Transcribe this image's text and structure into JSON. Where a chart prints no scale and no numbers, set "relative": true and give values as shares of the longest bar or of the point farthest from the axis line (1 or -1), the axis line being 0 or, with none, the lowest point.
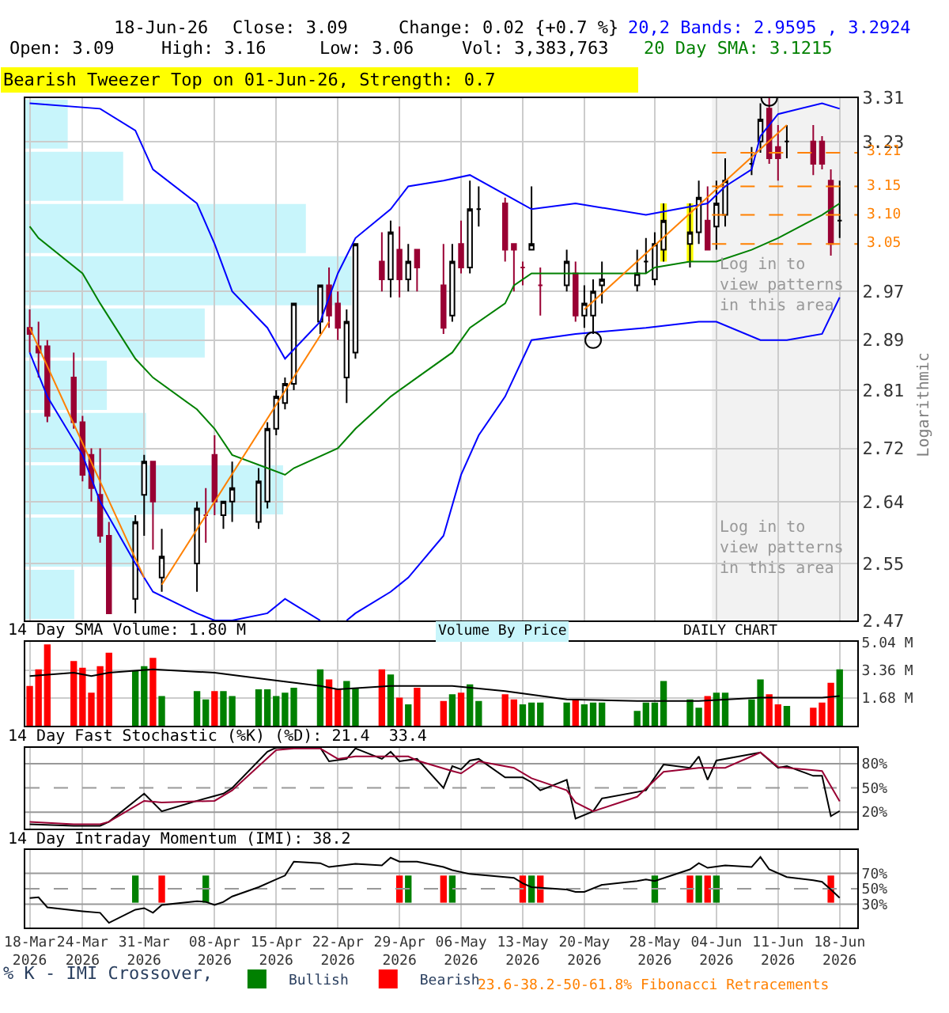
{
  "chart_data": [
    {
      "type": "candlestick",
      "log": true,
      "ylim": [
        2.47,
        3.31
      ],
      "yticks": [
        3.31,
        3.23,
        2.97,
        2.89,
        2.81,
        2.72,
        2.64,
        2.55,
        2.47
      ],
      "xlim": [
        "2026-03-17T12:00",
        "2026-06-20"
      ],
      "xticks": [
        {
          "value": "2026-03-18",
          "label": null
        },
        {
          "value": "2026-03-24",
          "label": null
        },
        {
          "value": "2026-03-31",
          "label": null
        },
        {
          "value": "2026-04-08",
          "label": null
        },
        {
          "value": "2026-04-15",
          "label": null
        },
        {
          "value": "2026-04-22",
          "label": null
        },
        {
          "value": "2026-04-29",
          "label": null
        },
        {
          "value": "2026-05-06",
          "label": null
        },
        {
          "value": "2026-05-13",
          "label": null
        },
        {
          "value": "2026-05-20",
          "label": null
        },
        {
          "value": "2026-05-28",
          "label": null
        },
        {
          "value": "2026-06-04",
          "label": null
        },
        {
          "value": "2026-06-11",
          "label": null
        },
        {
          "value": "2026-06-18",
          "label": null
        }
      ],
      "tick_labels": "y",
      "grid": true,
      "ylabel": "Logarithmic",
      "annotations": [
        "18-Jun-26",
        "Close: 3.09",
        "Change: 0.02 {+0.7 %}",
        "Open: 3.09",
        "High: 3.16",
        "Low: 3.06",
        "Vol: 3,383,763",
        "Bearish Tweezer Top on 01-Jun-26, Strength: 0.7",
        {
          "text": "Log in to\nview patterns\nin this area",
          "x": "2026-06-04",
          "y": 3.035
        },
        {
          "text": "Log in to\nview patterns\nin this area",
          "x": "2026-06-04",
          "y": 2.62
        },
        "DAILY CHART",
        "23.6-38.2-50-61.8% Fibonacci Retracements",
        "Volume By Price"
      ],
      "x": [
        "2026-03-18",
        "2026-03-19",
        "2026-03-20",
        "2026-03-23",
        "2026-03-24",
        "2026-03-25",
        "2026-03-26",
        "2026-03-27",
        "2026-03-30",
        "2026-03-31",
        "2026-04-01",
        "2026-04-02",
        "2026-04-06",
        "2026-04-07",
        "2026-04-08",
        "2026-04-09",
        "2026-04-10",
        "2026-04-13",
        "2026-04-14",
        "2026-04-15",
        "2026-04-16",
        "2026-04-17",
        "2026-04-20",
        "2026-04-21",
        "2026-04-22",
        "2026-04-23",
        "2026-04-24",
        "2026-04-27",
        "2026-04-28",
        "2026-04-29",
        "2026-04-30",
        "2026-05-01",
        "2026-05-04",
        "2026-05-05",
        "2026-05-06",
        "2026-05-07",
        "2026-05-08",
        "2026-05-11",
        "2026-05-12",
        "2026-05-13",
        "2026-05-14",
        "2026-05-15",
        "2026-05-18",
        "2026-05-19",
        "2026-05-20",
        "2026-05-21",
        "2026-05-22",
        "2026-05-26",
        "2026-05-27",
        "2026-05-28",
        "2026-05-29",
        "2026-06-01",
        "2026-06-02",
        "2026-06-03",
        "2026-06-04",
        "2026-06-05",
        "2026-06-08",
        "2026-06-09",
        "2026-06-10",
        "2026-06-11",
        "2026-06-12",
        "2026-06-15",
        "2026-06-16",
        "2026-06-17",
        "2026-06-18"
      ],
      "ohlc": [
        [
          2.91,
          2.94,
          2.87,
          2.9
        ],
        [
          2.88,
          2.92,
          2.83,
          2.87
        ],
        [
          2.88,
          2.89,
          2.76,
          2.77
        ],
        [
          2.83,
          2.87,
          2.75,
          2.76
        ],
        [
          2.76,
          2.77,
          2.67,
          2.68
        ],
        [
          2.71,
          2.72,
          2.64,
          2.66
        ],
        [
          2.65,
          2.72,
          2.58,
          2.59
        ],
        [
          2.59,
          2.61,
          2.48,
          2.48
        ],
        [
          2.5,
          2.62,
          2.48,
          2.61
        ],
        [
          2.65,
          2.71,
          2.59,
          2.7
        ],
        [
          2.7,
          2.7,
          2.57,
          2.64
        ],
        [
          2.53,
          2.6,
          2.51,
          2.56
        ],
        [
          2.55,
          2.64,
          2.51,
          2.63
        ],
        [
          2.62,
          2.66,
          2.58,
          2.62
        ],
        [
          2.71,
          2.74,
          2.62,
          2.64
        ],
        [
          2.62,
          2.64,
          2.6,
          2.64
        ],
        [
          2.64,
          2.7,
          2.61,
          2.66
        ],
        [
          2.61,
          2.69,
          2.6,
          2.67
        ],
        [
          2.64,
          2.76,
          2.63,
          2.75
        ],
        [
          2.75,
          2.81,
          2.74,
          2.8
        ],
        [
          2.79,
          2.83,
          2.78,
          2.82
        ],
        [
          2.82,
          2.95,
          2.81,
          2.95
        ],
        [
          2.92,
          2.98,
          2.9,
          2.98
        ],
        [
          2.98,
          3.01,
          2.91,
          2.93
        ],
        [
          2.95,
          2.97,
          2.89,
          2.91
        ],
        [
          2.83,
          2.94,
          2.79,
          2.92
        ],
        [
          2.87,
          3.05,
          2.86,
          3.05
        ],
        [
          3.02,
          3.07,
          2.97,
          2.99
        ],
        [
          2.99,
          3.09,
          2.96,
          3.07
        ],
        [
          3.04,
          3.08,
          2.96,
          2.99
        ],
        [
          2.99,
          3.05,
          2.97,
          3.02
        ],
        [
          3.04,
          3.04,
          2.97,
          3.01
        ],
        [
          2.98,
          3.05,
          2.9,
          2.91
        ],
        [
          2.93,
          3.05,
          2.92,
          3.02
        ],
        [
          3.05,
          3.09,
          3.0,
          3.01
        ],
        [
          3.01,
          3.16,
          3.0,
          3.11
        ],
        [
          3.11,
          3.15,
          3.08,
          3.11
        ],
        [
          3.12,
          3.13,
          3.02,
          3.04
        ],
        [
          3.05,
          3.05,
          2.97,
          3.04
        ],
        [
          3.01,
          3.02,
          2.98,
          3.01
        ],
        [
          3.04,
          3.15,
          3.04,
          3.05
        ],
        [
          2.98,
          3.01,
          2.93,
          2.98
        ],
        [
          2.98,
          3.04,
          2.97,
          3.02
        ],
        [
          3.0,
          3.02,
          2.92,
          2.93
        ],
        [
          2.93,
          2.98,
          2.91,
          2.95
        ],
        [
          2.93,
          2.99,
          2.9,
          2.97
        ],
        [
          2.98,
          3.02,
          2.95,
          2.99
        ],
        [
          2.98,
          3.04,
          2.97,
          3.0
        ],
        [
          3.02,
          3.06,
          3.0,
          3.02
        ],
        [
          2.99,
          3.07,
          2.98,
          3.05
        ],
        [
          3.04,
          3.12,
          3.02,
          3.09
        ],
        [
          3.05,
          3.12,
          3.01,
          3.07
        ],
        [
          3.07,
          3.16,
          3.05,
          3.13
        ],
        [
          3.09,
          3.15,
          3.04,
          3.04
        ],
        [
          3.08,
          3.16,
          3.04,
          3.12
        ],
        [
          3.1,
          3.2,
          3.08,
          3.16
        ],
        [
          3.19,
          3.22,
          3.17,
          3.19
        ],
        [
          3.23,
          3.3,
          3.21,
          3.27
        ],
        [
          3.29,
          3.31,
          3.19,
          3.2
        ],
        [
          3.22,
          3.26,
          3.16,
          3.2
        ],
        [
          3.23,
          3.26,
          3.2,
          3.23
        ],
        [
          3.23,
          3.26,
          3.17,
          3.19
        ],
        [
          3.23,
          3.24,
          3.18,
          3.19
        ],
        [
          3.16,
          3.18,
          3.03,
          3.05
        ],
        [
          3.09,
          3.16,
          3.06,
          3.09
        ]
      ],
      "ref_lines": [
        {
          "axis": "y",
          "value": 3.21,
          "label": "3.21",
          "color": "#ff8000",
          "line_style": "dashed"
        },
        {
          "axis": "y",
          "value": 3.15,
          "label": "3.15",
          "color": "#ff8000",
          "line_style": "dashed"
        },
        {
          "axis": "y",
          "value": 3.1,
          "label": "3.10",
          "color": "#ff8000",
          "line_style": "dashed"
        },
        {
          "axis": "y",
          "value": 3.05,
          "label": "3.05",
          "color": "#ff8000",
          "line_style": "dashed"
        }
      ],
      "bands": [
        {
          "axis": "x",
          "from": "2026-06-03T12:00",
          "to": "2026-06-20",
          "color": "#f2f2f2"
        }
      ],
      "series": [
        {
          "type": "bar",
          "color": "#ffff00",
          "x": [
            "2026-05-29",
            "2026-06-01"
          ],
          "base": [
            3.02,
            3.02
          ],
          "values": [
            0.1,
            0.1
          ]
        },
        {
          "type": "line",
          "name": "20,2 Bands: 2.9595 , 3.2924",
          "color": "#0000ff",
          "x": [
            "2026-03-18",
            "2026-03-26",
            "2026-03-30",
            "2026-04-01",
            "2026-04-06",
            "2026-04-08",
            "2026-04-10",
            "2026-04-14",
            "2026-04-16",
            "2026-04-20",
            "2026-04-22",
            "2026-04-24",
            "2026-04-28",
            "2026-04-30",
            "2026-05-04",
            "2026-05-07",
            "2026-05-14",
            "2026-05-19",
            "2026-05-27",
            "2026-06-03",
            "2026-06-05",
            "2026-06-08",
            "2026-06-09",
            "2026-06-11",
            "2026-06-16",
            "2026-06-18"
          ],
          "values": [
            3.3,
            3.29,
            3.25,
            3.18,
            3.12,
            3.05,
            2.97,
            2.91,
            2.86,
            2.92,
            3.0,
            3.06,
            3.11,
            3.15,
            3.16,
            3.17,
            3.11,
            3.12,
            3.1,
            3.12,
            3.15,
            3.18,
            3.24,
            3.28,
            3.3,
            3.29
          ]
        },
        {
          "type": "line",
          "color": "#0000ff",
          "x": [
            "2026-03-18",
            "2026-03-20",
            "2026-03-24",
            "2026-03-26",
            "2026-03-30",
            "2026-04-01",
            "2026-04-06",
            "2026-04-08",
            "2026-04-10",
            "2026-04-14",
            "2026-04-16",
            "2026-04-20",
            "2026-04-21",
            "2026-04-22",
            "2026-04-23",
            "2026-04-24",
            "2026-04-28",
            "2026-04-30",
            "2026-05-04",
            "2026-05-06",
            "2026-05-08",
            "2026-05-11",
            "2026-05-14",
            "2026-05-19",
            "2026-05-27",
            "2026-06-02",
            "2026-06-04",
            "2026-06-09",
            "2026-06-12",
            "2026-06-16",
            "2026-06-18"
          ],
          "values": [
            2.87,
            2.8,
            2.71,
            2.64,
            2.55,
            2.51,
            2.48,
            2.47,
            2.47,
            2.48,
            2.5,
            2.47,
            null,
            null,
            2.47,
            2.48,
            2.51,
            2.53,
            2.59,
            2.68,
            2.74,
            2.8,
            2.89,
            2.9,
            2.91,
            2.92,
            2.92,
            2.89,
            2.89,
            2.9,
            2.96
          ]
        },
        {
          "type": "line",
          "name": "20 Day SMA: 3.1215",
          "color": "#008000",
          "x": [
            "2026-03-18",
            "2026-03-19",
            "2026-03-24",
            "2026-03-26",
            "2026-03-30",
            "2026-04-01",
            "2026-04-06",
            "2026-04-08",
            "2026-04-10",
            "2026-04-14",
            "2026-04-16",
            "2026-04-17",
            "2026-04-22",
            "2026-04-24",
            "2026-04-28",
            "2026-05-01",
            "2026-05-05",
            "2026-05-07",
            "2026-05-11",
            "2026-05-12",
            "2026-05-14",
            "2026-05-20",
            "2026-05-27",
            "2026-05-28",
            "2026-06-01",
            "2026-06-04",
            "2026-06-08",
            "2026-06-11",
            "2026-06-16",
            "2026-06-18"
          ],
          "values": [
            3.08,
            3.06,
            3.0,
            2.95,
            2.86,
            2.83,
            2.78,
            2.75,
            2.71,
            2.69,
            2.68,
            2.69,
            2.72,
            2.75,
            2.8,
            2.83,
            2.87,
            2.91,
            2.95,
            2.98,
            3.0,
            3.0,
            3.0,
            3.01,
            3.02,
            3.02,
            3.04,
            3.06,
            3.1,
            3.12
          ]
        },
        {
          "type": "line",
          "color": "#ff8000",
          "x": [
            "2026-03-18",
            "2026-03-31"
          ],
          "values": [
            2.91,
            2.53
          ]
        },
        {
          "type": "line",
          "color": "#ff8000",
          "x": [
            "2026-04-02",
            "2026-04-21"
          ],
          "values": [
            2.52,
            2.92
          ]
        },
        {
          "type": "line",
          "color": "#ff8000",
          "x": [
            "2026-05-20",
            "2026-06-12"
          ],
          "values": [
            2.94,
            3.26
          ]
        },
        {
          "type": "scatter",
          "marker": "circle",
          "color": "#000000",
          "x": [
            "2026-05-21",
            "2026-06-10"
          ],
          "values": [
            2.89,
            3.31
          ]
        }
      ]
    },
    {
      "type": "bar",
      "orientation": "horizontal",
      "relative": true,
      "color": "#c8f5fb",
      "categories": [
        null,
        null,
        null,
        null,
        null,
        null,
        null,
        null,
        null,
        null
      ],
      "values": [
        0.13,
        0.3,
        0.86,
        1,
        0.55,
        0.25,
        0.37,
        0.79,
        0.34,
        0.15
      ]
    },
    {
      "type": "bar",
      "title": "14 Day SMA Volume: 1.80 M",
      "ylim": [
        0,
        5.04
      ],
      "yticks": [
        {
          "value": 1.68,
          "label": "1.68 M"
        },
        {
          "value": 3.36,
          "label": "3.36 M"
        },
        {
          "value": 5.04,
          "label": "5.04 M"
        }
      ],
      "xlim": [
        "2026-03-17T12:00",
        "2026-06-20"
      ],
      "xticks": [
        {
          "value": "2026-03-18",
          "label": null
        },
        {
          "value": "2026-03-24",
          "label": null
        },
        {
          "value": "2026-03-31",
          "label": null
        },
        {
          "value": "2026-04-08",
          "label": null
        },
        {
          "value": "2026-04-15",
          "label": null
        },
        {
          "value": "2026-04-22",
          "label": null
        },
        {
          "value": "2026-04-29",
          "label": null
        },
        {
          "value": "2026-05-06",
          "label": null
        },
        {
          "value": "2026-05-13",
          "label": null
        },
        {
          "value": "2026-05-20",
          "label": null
        },
        {
          "value": "2026-05-28",
          "label": null
        },
        {
          "value": "2026-06-04",
          "label": null
        },
        {
          "value": "2026-06-11",
          "label": null
        },
        {
          "value": "2026-06-18",
          "label": null
        }
      ],
      "tick_labels": "y",
      "grid": true,
      "x": [
        "2026-03-18",
        "2026-03-19",
        "2026-03-20",
        "2026-03-23",
        "2026-03-24",
        "2026-03-25",
        "2026-03-26",
        "2026-03-27",
        "2026-03-30",
        "2026-03-31",
        "2026-04-01",
        "2026-04-02",
        "2026-04-06",
        "2026-04-07",
        "2026-04-08",
        "2026-04-09",
        "2026-04-10",
        "2026-04-13",
        "2026-04-14",
        "2026-04-15",
        "2026-04-16",
        "2026-04-17",
        "2026-04-20",
        "2026-04-21",
        "2026-04-22",
        "2026-04-23",
        "2026-04-24",
        "2026-04-27",
        "2026-04-28",
        "2026-04-29",
        "2026-04-30",
        "2026-05-01",
        "2026-05-04",
        "2026-05-05",
        "2026-05-06",
        "2026-05-07",
        "2026-05-08",
        "2026-05-11",
        "2026-05-12",
        "2026-05-13",
        "2026-05-14",
        "2026-05-15",
        "2026-05-18",
        "2026-05-19",
        "2026-05-20",
        "2026-05-21",
        "2026-05-22",
        "2026-05-26",
        "2026-05-27",
        "2026-05-28",
        "2026-05-29",
        "2026-06-01",
        "2026-06-02",
        "2026-06-03",
        "2026-06-04",
        "2026-06-05",
        "2026-06-08",
        "2026-06-09",
        "2026-06-10",
        "2026-06-11",
        "2026-06-12",
        "2026-06-15",
        "2026-06-16",
        "2026-06-17",
        "2026-06-18"
      ],
      "values": [
        2.4,
        3.4,
        4.9,
        3.9,
        3.5,
        2.0,
        3.6,
        4.4,
        3.3,
        3.6,
        4.1,
        1.8,
        2.1,
        1.6,
        2.1,
        2.1,
        1.8,
        2.2,
        2.2,
        1.8,
        2.0,
        2.3,
        3.4,
        2.8,
        2.2,
        2.7,
        2.3,
        3.4,
        3.1,
        1.7,
        1.3,
        2.3,
        1.5,
        1.9,
        2.0,
        2.5,
        1.5,
        1.9,
        1.6,
        1.3,
        1.4,
        1.4,
        1.4,
        1.6,
        1.3,
        1.4,
        1.4,
        0.9,
        1.4,
        1.4,
        2.7,
        1.6,
        1.1,
        1.8,
        2.0,
        2.0,
        1.6,
        2.8,
        1.9,
        1.3,
        1.2,
        1.1,
        1.4,
        2.6,
        3.4
      ],
      "colors": [
        "#ff0000",
        "#ff0000",
        "#ff0000",
        "#ff0000",
        "#ff0000",
        "#ff0000",
        "#ff0000",
        "#ff0000",
        "#008000",
        "#008000",
        "#ff0000",
        "#008000",
        "#008000",
        "#008000",
        "#ff0000",
        "#008000",
        "#008000",
        "#008000",
        "#008000",
        "#008000",
        "#008000",
        "#008000",
        "#008000",
        "#ff0000",
        "#ff0000",
        "#008000",
        "#008000",
        "#ff0000",
        "#008000",
        "#ff0000",
        "#008000",
        "#ff0000",
        "#ff0000",
        "#008000",
        "#ff0000",
        "#008000",
        "#008000",
        "#ff0000",
        "#ff0000",
        "#008000",
        "#008000",
        "#008000",
        "#008000",
        "#ff0000",
        "#008000",
        "#008000",
        "#008000",
        "#008000",
        "#008000",
        "#008000",
        "#008000",
        "#008000",
        "#008000",
        "#ff0000",
        "#008000",
        "#008000",
        "#008000",
        "#008000",
        "#ff0000",
        "#ff0000",
        "#008000",
        "#ff0000",
        "#ff0000",
        "#ff0000",
        "#008000"
      ],
      "series": [
        {
          "type": "line",
          "color": "#000000",
          "x": [
            "2026-03-18",
            "2026-03-23",
            "2026-03-25",
            "2026-03-27",
            "2026-04-01",
            "2026-04-08",
            "2026-04-14",
            "2026-04-20",
            "2026-04-22",
            "2026-04-28",
            "2026-05-05",
            "2026-05-11",
            "2026-05-18",
            "2026-05-26",
            "2026-06-02",
            "2026-06-09",
            "2026-06-16",
            "2026-06-18"
          ],
          "values": [
            3.0,
            3.2,
            3.0,
            3.2,
            3.4,
            3.2,
            2.8,
            2.4,
            2.2,
            2.4,
            2.4,
            2.1,
            1.6,
            1.5,
            1.5,
            1.7,
            1.7,
            1.8
          ]
        }
      ]
    },
    {
      "type": "line",
      "title": "14 Day Fast Stochastic (%K) (%D): 21.4  33.4",
      "ylim": [
        0,
        100
      ],
      "yticks": [
        {
          "value": 20,
          "label": "20%"
        },
        {
          "value": 50,
          "label": "50%"
        },
        {
          "value": 80,
          "label": "80%"
        }
      ],
      "xlim": [
        "2026-03-17T12:00",
        "2026-06-20"
      ],
      "xticks": [
        {
          "value": "2026-03-18",
          "label": null
        },
        {
          "value": "2026-03-24",
          "label": null
        },
        {
          "value": "2026-03-31",
          "label": null
        },
        {
          "value": "2026-04-08",
          "label": null
        },
        {
          "value": "2026-04-15",
          "label": null
        },
        {
          "value": "2026-04-22",
          "label": null
        },
        {
          "value": "2026-04-29",
          "label": null
        },
        {
          "value": "2026-05-06",
          "label": null
        },
        {
          "value": "2026-05-13",
          "label": null
        },
        {
          "value": "2026-05-20",
          "label": null
        },
        {
          "value": "2026-05-28",
          "label": null
        },
        {
          "value": "2026-06-04",
          "label": null
        },
        {
          "value": "2026-06-11",
          "label": null
        },
        {
          "value": "2026-06-18",
          "label": null
        }
      ],
      "tick_labels": "y",
      "grid": "x",
      "ref_lines": [
        {
          "axis": "y",
          "value": 80,
          "color": "#999999",
          "line_style": "solid"
        },
        {
          "axis": "y",
          "value": 50,
          "color": "#999999",
          "line_style": "dashed"
        },
        {
          "axis": "y",
          "value": 20,
          "color": "#999999",
          "line_style": "solid"
        }
      ],
      "series": [
        {
          "type": "line",
          "color": "#000000",
          "x": [
            "2026-03-18",
            "2026-03-23",
            "2026-03-26",
            "2026-03-27",
            "2026-03-31",
            "2026-04-02",
            "2026-04-06",
            "2026-04-09",
            "2026-04-10",
            "2026-04-14",
            "2026-04-15",
            "2026-04-20",
            "2026-04-21",
            "2026-04-23",
            "2026-04-24",
            "2026-04-27",
            "2026-04-28",
            "2026-04-29",
            "2026-05-01",
            "2026-05-04",
            "2026-05-05",
            "2026-05-06",
            "2026-05-07",
            "2026-05-08",
            "2026-05-11",
            "2026-05-13",
            "2026-05-14",
            "2026-05-15",
            "2026-05-18",
            "2026-05-19",
            "2026-05-21",
            "2026-05-22",
            "2026-05-27",
            "2026-05-29",
            "2026-06-01",
            "2026-06-02",
            "2026-06-03",
            "2026-06-04",
            "2026-06-09",
            "2026-06-11",
            "2026-06-12",
            "2026-06-15",
            "2026-06-16",
            "2026-06-17",
            "2026-06-18"
          ],
          "values": [
            5,
            3,
            3,
            8,
            43,
            21,
            34,
            43,
            50,
            95,
            100,
            100,
            83,
            86,
            99,
            86,
            95,
            83,
            86,
            50,
            77,
            73,
            84,
            86,
            63,
            63,
            57,
            47,
            60,
            12,
            21,
            37,
            47,
            79,
            75,
            89,
            60,
            84,
            94,
            75,
            77,
            65,
            65,
            15,
            21.4
          ]
        },
        {
          "type": "line",
          "color": "#990033",
          "x": [
            "2026-03-18",
            "2026-03-23",
            "2026-03-26",
            "2026-03-27",
            "2026-03-31",
            "2026-04-02",
            "2026-04-08",
            "2026-04-10",
            "2026-04-15",
            "2026-04-17",
            "2026-04-20",
            "2026-04-22",
            "2026-04-24",
            "2026-04-28",
            "2026-04-30",
            "2026-05-01",
            "2026-05-05",
            "2026-05-06",
            "2026-05-08",
            "2026-05-12",
            "2026-05-14",
            "2026-05-18",
            "2026-05-19",
            "2026-05-21",
            "2026-05-26",
            "2026-05-29",
            "2026-06-02",
            "2026-06-05",
            "2026-06-09",
            "2026-06-11",
            "2026-06-16",
            "2026-06-18"
          ],
          "values": [
            8,
            5,
            5,
            8,
            34,
            32,
            34,
            47,
            97,
            99,
            99,
            86,
            89,
            89,
            89,
            84,
            71,
            68,
            83,
            75,
            62,
            47,
            32,
            21,
            39,
            70,
            75,
            75,
            94,
            76,
            71,
            33.4
          ]
        }
      ]
    },
    {
      "type": "line",
      "title": "14 Day Intraday Momentum (IMI): 38.2",
      "legend": "bottom left",
      "legend_title": "% K - IMI Crossover,",
      "ylim": [
        0,
        100
      ],
      "yticks": [
        {
          "value": 30,
          "label": "30%"
        },
        {
          "value": 50,
          "label": "50%"
        },
        {
          "value": 70,
          "label": "70%"
        }
      ],
      "xlim": [
        "2026-03-17T12:00",
        "2026-06-20"
      ],
      "xticks": [
        {
          "value": "2026-03-18",
          "label": "18-Mar\n2026"
        },
        {
          "value": "2026-03-24",
          "label": "24-Mar\n2026"
        },
        {
          "value": "2026-03-31",
          "label": "31-Mar\n2026"
        },
        {
          "value": "2026-04-08",
          "label": "08-Apr\n2026"
        },
        {
          "value": "2026-04-15",
          "label": "15-Apr\n2026"
        },
        {
          "value": "2026-04-22",
          "label": "22-Apr\n2026"
        },
        {
          "value": "2026-04-29",
          "label": "29-Apr\n2026"
        },
        {
          "value": "2026-05-06",
          "label": "06-May\n2026"
        },
        {
          "value": "2026-05-13",
          "label": "13-May\n2026"
        },
        {
          "value": "2026-05-20",
          "label": "20-May\n2026"
        },
        {
          "value": "2026-05-28",
          "label": "28-May\n2026"
        },
        {
          "value": "2026-06-04",
          "label": "04-Jun\n2026"
        },
        {
          "value": "2026-06-11",
          "label": "11-Jun\n2026"
        },
        {
          "value": "2026-06-18",
          "label": "18-Jun\n2026"
        }
      ],
      "grid": "x",
      "ref_lines": [
        {
          "axis": "y",
          "value": 70,
          "color": "#999999",
          "line_style": "solid"
        },
        {
          "axis": "y",
          "value": 50,
          "color": "#999999",
          "line_style": "dashed"
        },
        {
          "axis": "y",
          "value": 30,
          "color": "#999999",
          "line_style": "solid"
        }
      ],
      "series": [
        {
          "type": "line",
          "color": "#000000",
          "x": [
            "2026-03-18",
            "2026-03-19",
            "2026-03-20",
            "2026-03-24",
            "2026-03-26",
            "2026-03-27",
            "2026-03-30",
            "2026-03-31",
            "2026-04-01",
            "2026-04-02",
            "2026-04-06",
            "2026-04-07",
            "2026-04-08",
            "2026-04-09",
            "2026-04-10",
            "2026-04-13",
            "2026-04-15",
            "2026-04-16",
            "2026-04-17",
            "2026-04-20",
            "2026-04-21",
            "2026-04-24",
            "2026-04-27",
            "2026-04-28",
            "2026-04-29",
            "2026-05-01",
            "2026-05-04",
            "2026-05-05",
            "2026-05-07",
            "2026-05-12",
            "2026-05-13",
            "2026-05-14",
            "2026-05-18",
            "2026-05-19",
            "2026-05-20",
            "2026-05-22",
            "2026-05-26",
            "2026-05-27",
            "2026-05-28",
            "2026-06-01",
            "2026-06-02",
            "2026-06-03",
            "2026-06-05",
            "2026-06-08",
            "2026-06-09",
            "2026-06-10",
            "2026-06-12",
            "2026-06-15",
            "2026-06-16",
            "2026-06-17",
            "2026-06-18"
          ],
          "values": [
            38,
            39,
            26,
            21,
            19,
            6,
            23,
            25,
            19,
            29,
            34,
            33,
            29,
            33,
            40,
            52,
            62,
            67,
            85,
            83,
            78,
            82,
            80,
            90,
            85,
            85,
            78,
            74,
            69,
            64,
            57,
            52,
            49,
            46,
            46,
            55,
            60,
            62,
            60,
            75,
            83,
            77,
            80,
            78,
            91,
            75,
            65,
            61,
            59,
            49,
            38.2
          ]
        },
        {
          "type": "bar",
          "name": "Bullish",
          "color": "#008000",
          "x": [
            "2026-03-30",
            "2026-04-07",
            "2026-04-30",
            "2026-05-05",
            "2026-05-14",
            "2026-05-28",
            "2026-06-02",
            "2026-06-04"
          ],
          "base": [
            32,
            32,
            32,
            32,
            32,
            32,
            32,
            32
          ],
          "values": [
            35,
            35,
            35,
            35,
            35,
            35,
            35,
            35
          ]
        },
        {
          "type": "bar",
          "name": "Bearish",
          "color": "#ff0000",
          "x": [
            "2026-04-02",
            "2026-04-29",
            "2026-05-04",
            "2026-05-13",
            "2026-05-15",
            "2026-06-01",
            "2026-06-03",
            "2026-06-17"
          ],
          "base": [
            32,
            32,
            32,
            32,
            32,
            32,
            32,
            32
          ],
          "values": [
            35,
            35,
            35,
            35,
            35,
            35,
            35,
            35
          ]
        }
      ]
    }
  ]
}
